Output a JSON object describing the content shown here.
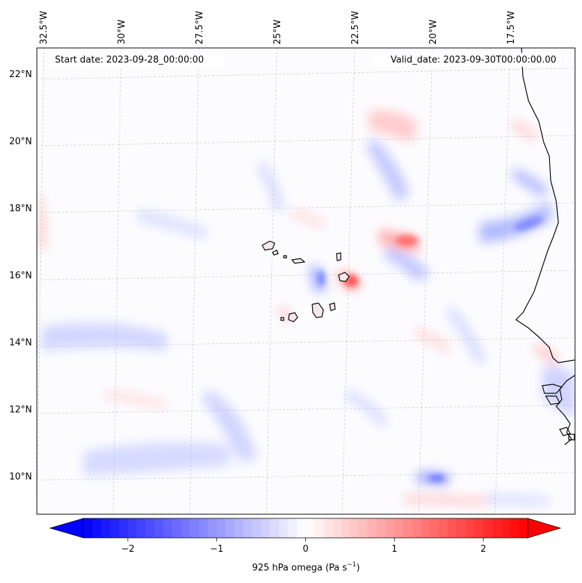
{
  "map": {
    "start_date_text": "Start date: 2023-09-28_00:00:00",
    "valid_date_text": "Valid_date: 2023-09-30T00:00:00.00",
    "lon_ticks": [
      {
        "label": "32.5°W",
        "value": -32.5
      },
      {
        "label": "30°W",
        "value": -30
      },
      {
        "label": "27.5°W",
        "value": -27.5
      },
      {
        "label": "25°W",
        "value": -25
      },
      {
        "label": "22.5°W",
        "value": -22.5
      },
      {
        "label": "20°W",
        "value": -20
      },
      {
        "label": "17.5°W",
        "value": -17.5
      }
    ],
    "lat_ticks": [
      {
        "label": "22°N",
        "value": 22
      },
      {
        "label": "20°N",
        "value": 20
      },
      {
        "label": "18°N",
        "value": 18
      },
      {
        "label": "16°N",
        "value": 16
      },
      {
        "label": "14°N",
        "value": 14
      },
      {
        "label": "12°N",
        "value": 12
      },
      {
        "label": "10°N",
        "value": 10
      }
    ],
    "colors": {
      "negative": "#0000ff",
      "neutral": "#ffffff",
      "positive": "#ff0000",
      "coast": "#000000",
      "grid": "#b0b0b0"
    }
  },
  "colorbar": {
    "ticks": [
      {
        "label": "−2",
        "value": -2
      },
      {
        "label": "−1",
        "value": -1
      },
      {
        "label": "0",
        "value": 0
      },
      {
        "label": "1",
        "value": 1
      },
      {
        "label": "2",
        "value": 2
      }
    ],
    "range": [
      -2.5,
      2.5
    ],
    "label_main": "925 hPa omega (Pa s",
    "label_sup": "−1",
    "label_end": ")"
  }
}
